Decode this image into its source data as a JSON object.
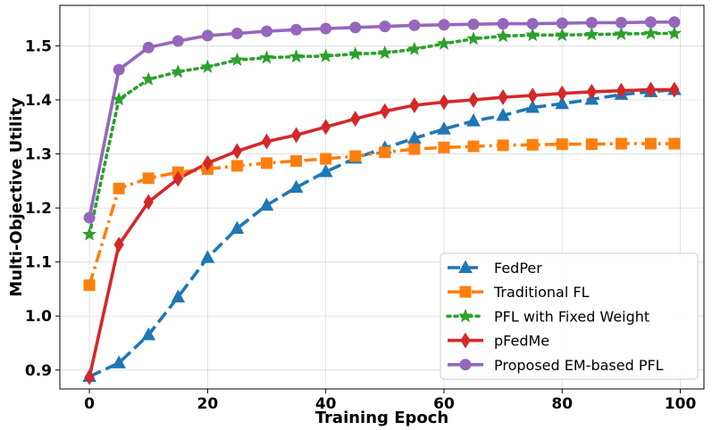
{
  "chart_data": {
    "type": "line",
    "title": "",
    "xlabel": "Training Epoch",
    "ylabel": "Multi-Objective Utility",
    "xlim": [
      -5,
      104
    ],
    "ylim": [
      0.865,
      1.575
    ],
    "xticks": [
      0,
      20,
      40,
      60,
      80,
      100
    ],
    "yticks": [
      0.9,
      1.0,
      1.1,
      1.2,
      1.3,
      1.4,
      1.5
    ],
    "ytick_labels": [
      "0.9",
      "1.0",
      "1.1",
      "1.2",
      "1.3",
      "1.4",
      "1.5"
    ],
    "grid": true,
    "legend_position": "bottom-right",
    "series": [
      {
        "name": "FedPer",
        "color": "#1f77b4",
        "marker": "triangle",
        "line_style": "dashed",
        "x": [
          0,
          5,
          10,
          15,
          20,
          25,
          30,
          35,
          40,
          45,
          50,
          55,
          60,
          65,
          70,
          75,
          80,
          85,
          90,
          95,
          99
        ],
        "values": [
          0.888,
          0.913,
          0.965,
          1.035,
          1.108,
          1.162,
          1.205,
          1.238,
          1.267,
          1.292,
          1.311,
          1.329,
          1.346,
          1.361,
          1.371,
          1.386,
          1.393,
          1.401,
          1.41,
          1.415,
          1.419
        ]
      },
      {
        "name": "Traditional FL",
        "color": "#ff7f0e",
        "marker": "square",
        "line_style": "dashdot",
        "x": [
          0,
          5,
          10,
          15,
          20,
          25,
          30,
          35,
          40,
          45,
          50,
          55,
          60,
          65,
          70,
          75,
          80,
          85,
          90,
          95,
          99
        ],
        "values": [
          1.057,
          1.236,
          1.255,
          1.266,
          1.272,
          1.278,
          1.283,
          1.287,
          1.291,
          1.296,
          1.303,
          1.309,
          1.312,
          1.314,
          1.316,
          1.317,
          1.318,
          1.318,
          1.319,
          1.319,
          1.319
        ]
      },
      {
        "name": "PFL with Fixed Weight",
        "color": "#2ca02c",
        "marker": "star",
        "line_style": "dotted",
        "x": [
          0,
          5,
          10,
          15,
          20,
          25,
          30,
          35,
          40,
          45,
          50,
          55,
          60,
          65,
          70,
          75,
          80,
          85,
          90,
          95,
          99
        ],
        "values": [
          1.151,
          1.401,
          1.438,
          1.452,
          1.461,
          1.474,
          1.478,
          1.48,
          1.481,
          1.485,
          1.487,
          1.494,
          1.504,
          1.513,
          1.518,
          1.52,
          1.52,
          1.521,
          1.522,
          1.523,
          1.523
        ]
      },
      {
        "name": "pFedMe",
        "color": "#d62728",
        "marker": "diamond",
        "line_style": "solid",
        "x": [
          0,
          5,
          10,
          15,
          20,
          25,
          30,
          35,
          40,
          45,
          50,
          55,
          60,
          65,
          70,
          75,
          80,
          85,
          90,
          95,
          99
        ],
        "values": [
          0.887,
          1.132,
          1.211,
          1.254,
          1.283,
          1.305,
          1.323,
          1.335,
          1.35,
          1.365,
          1.379,
          1.39,
          1.396,
          1.4,
          1.405,
          1.408,
          1.412,
          1.415,
          1.417,
          1.419,
          1.419
        ]
      },
      {
        "name": "Proposed EM-based PFL",
        "color": "#9467bd",
        "marker": "circle",
        "line_style": "solid",
        "x": [
          0,
          5,
          10,
          15,
          20,
          25,
          30,
          35,
          40,
          45,
          50,
          55,
          60,
          65,
          70,
          75,
          80,
          85,
          90,
          95,
          99
        ],
        "values": [
          1.182,
          1.456,
          1.497,
          1.509,
          1.519,
          1.523,
          1.527,
          1.53,
          1.532,
          1.534,
          1.536,
          1.538,
          1.539,
          1.54,
          1.541,
          1.541,
          1.542,
          1.543,
          1.543,
          1.544,
          1.544
        ]
      }
    ]
  }
}
